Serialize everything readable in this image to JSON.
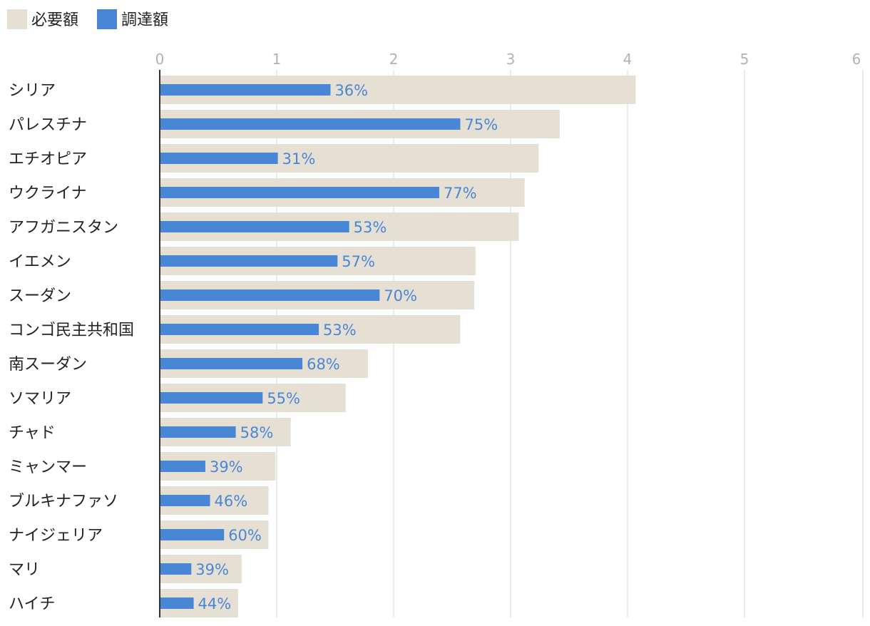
{
  "chart_data": {
    "type": "bar",
    "orientation": "horizontal",
    "title": "",
    "xlabel": "",
    "ylabel": "",
    "xlim": [
      0,
      6
    ],
    "ticks": [
      "0",
      "1",
      "2",
      "3",
      "4",
      "5",
      "6"
    ],
    "grid": true,
    "legend_position": "top-left",
    "series": [
      {
        "name": "必要額",
        "color": "#e6dfd3"
      },
      {
        "name": "調達額",
        "color": "#4a86d6"
      }
    ],
    "categories": [
      "シリア",
      "パレスチナ",
      "エチオピア",
      "ウクライナ",
      "アフガニスタン",
      "イエメン",
      "スーダン",
      "コンゴ民主共和国",
      "南スーダン",
      "ソマリア",
      "チャド",
      "ミャンマー",
      "ブルキナファソ",
      "ナイジェリア",
      "マリ",
      "ハイチ"
    ],
    "required": [
      4.07,
      3.42,
      3.24,
      3.12,
      3.07,
      2.7,
      2.69,
      2.57,
      1.78,
      1.59,
      1.12,
      0.99,
      0.93,
      0.93,
      0.7,
      0.67
    ],
    "funded": [
      1.46,
      2.57,
      1.01,
      2.39,
      1.62,
      1.52,
      1.88,
      1.36,
      1.22,
      0.88,
      0.65,
      0.39,
      0.43,
      0.55,
      0.27,
      0.29
    ],
    "percent_labels": [
      "36%",
      "75%",
      "31%",
      "77%",
      "53%",
      "57%",
      "70%",
      "53%",
      "68%",
      "55%",
      "58%",
      "39%",
      "46%",
      "60%",
      "39%",
      "44%"
    ]
  }
}
